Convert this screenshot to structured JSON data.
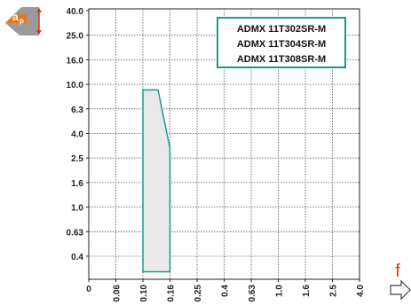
{
  "chart_data": {
    "type": "area",
    "title": "",
    "xlabel": "f",
    "ylabel": "ap",
    "x_ticks": [
      "0",
      "0.06",
      "0.10",
      "0.16",
      "0.25",
      "0.4",
      "0.63",
      "1.0",
      "1.6",
      "2.5",
      "4.0"
    ],
    "y_ticks": [
      "40.0",
      "25.0",
      "16.0",
      "10.0",
      "6.3",
      "4.0",
      "2.5",
      "1.6",
      "1.0",
      "0.63",
      "0.4"
    ],
    "x_scale": "categorical-log",
    "y_scale": "categorical-log",
    "grid": true,
    "legend": {
      "placement": "top-right",
      "entries": [
        "ADMX 11T302SR-M",
        "ADMX 11T304SR-M",
        "ADMX 11T308SR-M"
      ]
    },
    "series": [
      {
        "fill": "#e8e8e8",
        "stroke": "#1a9a8a",
        "points": [
          {
            "x": 0.1,
            "y": 9.0
          },
          {
            "x": 0.13,
            "y": 9.0
          },
          {
            "x": 0.16,
            "y": 3.0
          },
          {
            "x": 0.16,
            "y": 0.3
          },
          {
            "x": 0.1,
            "y": 0.3
          }
        ]
      }
    ],
    "colors": {
      "grid": "#555555",
      "axis": "#222222",
      "region_stroke": "#1a9a8a",
      "region_fill": "#e8e8e8",
      "legend_border": "#1a9a8a",
      "accent": "#e8781e",
      "feed_arrow": "#444444",
      "feed_label": "#d13b1e"
    }
  },
  "icons": {
    "ap_icon": "ap-depth-of-cut-icon",
    "ap_label_main": "a",
    "ap_label_sub": "p",
    "feed_arrow": "right-arrow-icon"
  }
}
